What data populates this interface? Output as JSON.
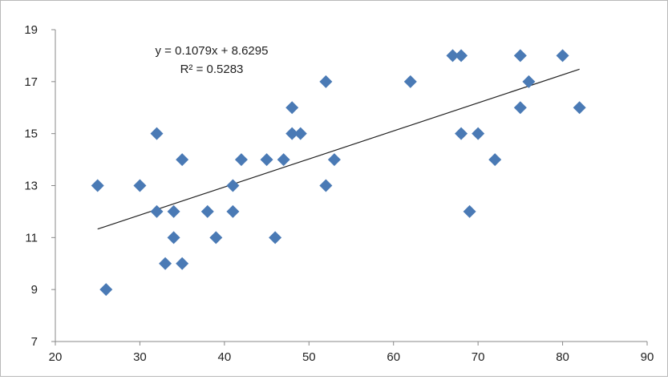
{
  "chart_data": {
    "type": "scatter",
    "title": "",
    "xlabel": "",
    "ylabel": "",
    "xlim": [
      20,
      90
    ],
    "ylim": [
      7,
      19
    ],
    "x_ticks": [
      20,
      30,
      40,
      50,
      60,
      70,
      80,
      90
    ],
    "y_ticks": [
      7,
      9,
      11,
      13,
      15,
      17,
      19
    ],
    "grid": false,
    "legend": "none",
    "marker": "diamond",
    "colors": {
      "marker": "#4a7ab5",
      "trendline": "#222222",
      "axis": "#888888"
    },
    "points": [
      {
        "x": 25,
        "y": 13
      },
      {
        "x": 26,
        "y": 9
      },
      {
        "x": 30,
        "y": 13
      },
      {
        "x": 32,
        "y": 15
      },
      {
        "x": 32,
        "y": 12
      },
      {
        "x": 33,
        "y": 10
      },
      {
        "x": 34,
        "y": 12
      },
      {
        "x": 34,
        "y": 11
      },
      {
        "x": 35,
        "y": 14
      },
      {
        "x": 35,
        "y": 10
      },
      {
        "x": 38,
        "y": 12
      },
      {
        "x": 39,
        "y": 11
      },
      {
        "x": 41,
        "y": 13
      },
      {
        "x": 41,
        "y": 12
      },
      {
        "x": 42,
        "y": 14
      },
      {
        "x": 45,
        "y": 14
      },
      {
        "x": 46,
        "y": 11
      },
      {
        "x": 47,
        "y": 14
      },
      {
        "x": 48,
        "y": 16
      },
      {
        "x": 48,
        "y": 15
      },
      {
        "x": 49,
        "y": 15
      },
      {
        "x": 52,
        "y": 17
      },
      {
        "x": 52,
        "y": 13
      },
      {
        "x": 53,
        "y": 14
      },
      {
        "x": 62,
        "y": 17
      },
      {
        "x": 67,
        "y": 18
      },
      {
        "x": 68,
        "y": 18
      },
      {
        "x": 68,
        "y": 15
      },
      {
        "x": 69,
        "y": 12
      },
      {
        "x": 70,
        "y": 15
      },
      {
        "x": 72,
        "y": 14
      },
      {
        "x": 75,
        "y": 18
      },
      {
        "x": 75,
        "y": 16
      },
      {
        "x": 76,
        "y": 17
      },
      {
        "x": 80,
        "y": 18
      },
      {
        "x": 82,
        "y": 16
      }
    ],
    "trendline": {
      "slope": 0.1079,
      "intercept": 8.6295,
      "x_start": 25,
      "x_end": 82
    },
    "annotations": {
      "equation": "y = 0.1079x + 8.6295",
      "r_squared": "R² = 0.5283"
    }
  }
}
